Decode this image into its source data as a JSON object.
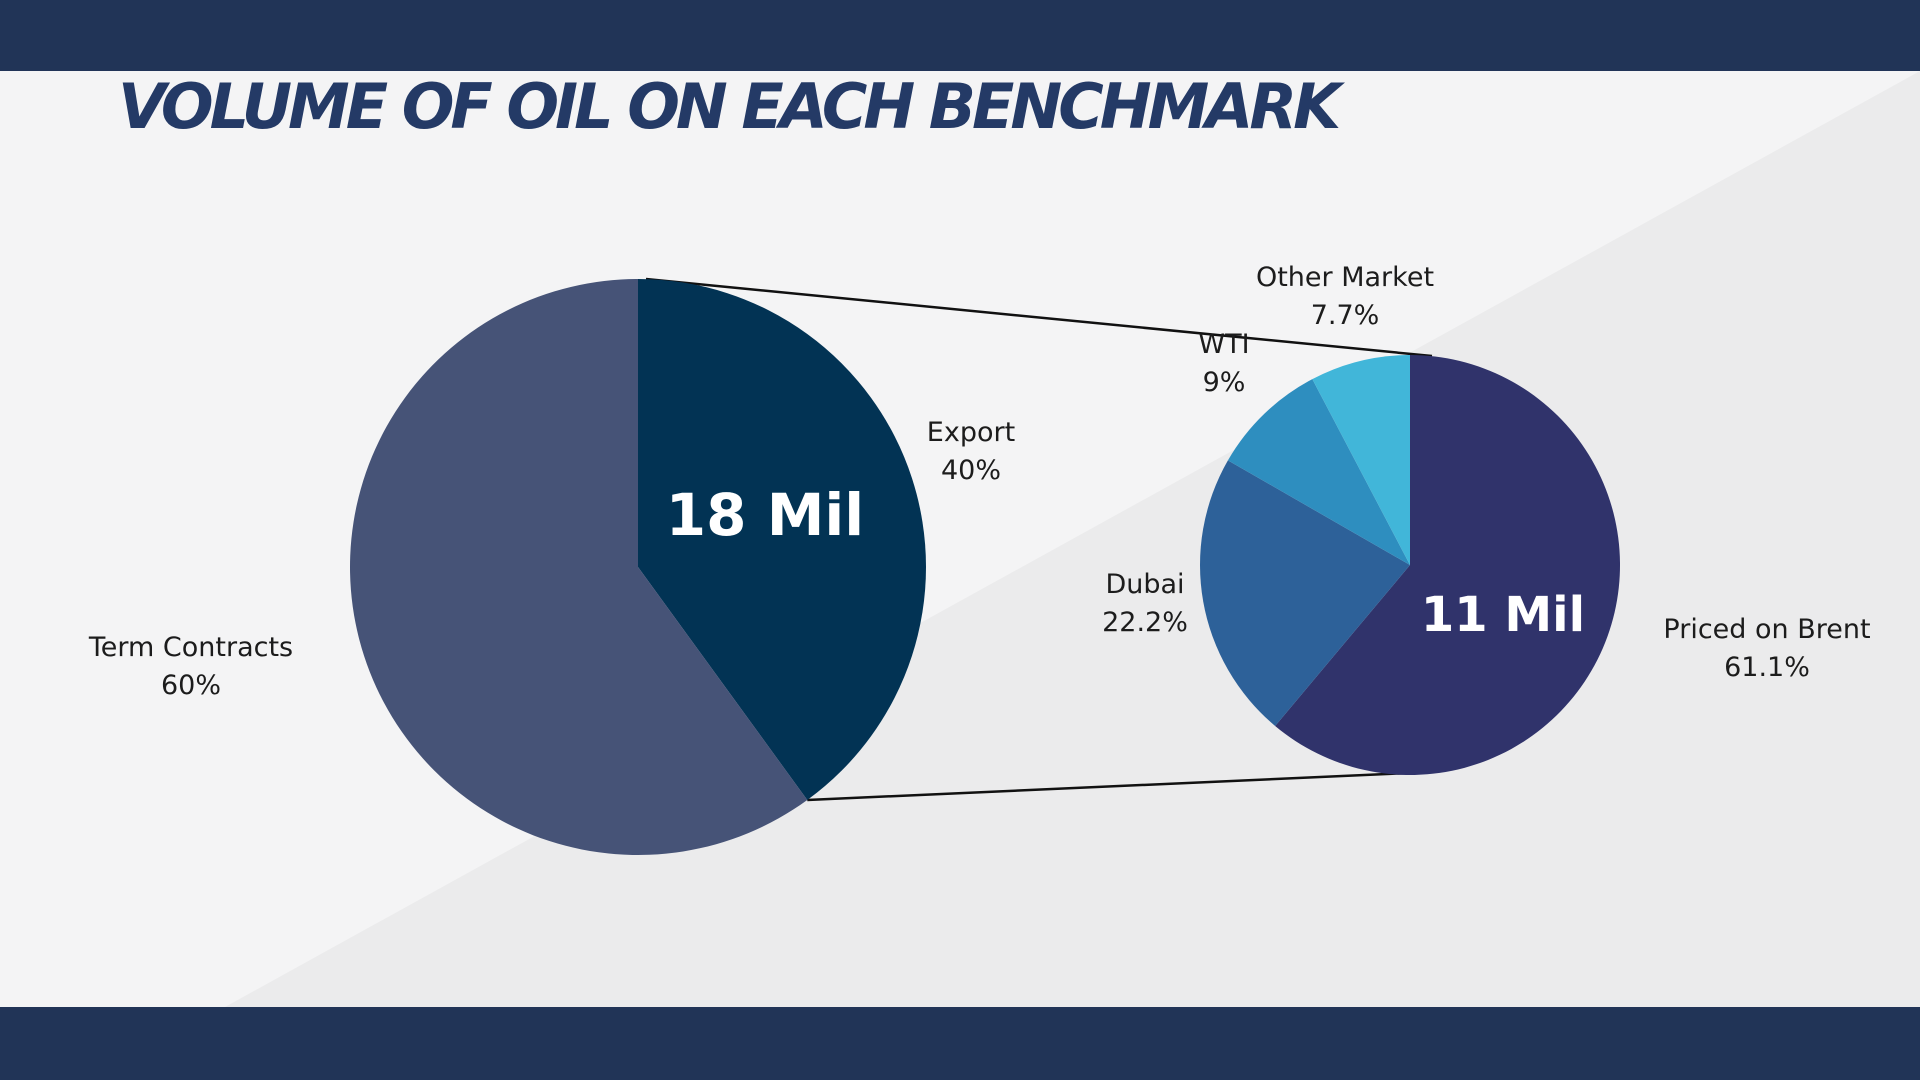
{
  "title": "VOLUME OF OIL ON EACH BENCHMARK",
  "colors": {
    "band": "#213457",
    "title": "#243a66",
    "background": "#f4f4f5",
    "background_diagonal": "#ebebec",
    "term_contracts": "#465377",
    "export": "#023354",
    "priced_on_brent": "#30336b",
    "dubai": "#2d6199",
    "wti": "#2e8ebf",
    "other_market": "#41b6d9",
    "connector": "#111111",
    "center_label": "#ffffff"
  },
  "chart_data": [
    {
      "type": "pie",
      "center_label": "18 Mil",
      "slices": [
        {
          "name": "Export",
          "value": 40,
          "label": "40%",
          "color": "#023354"
        },
        {
          "name": "Term Contracts",
          "value": 60,
          "label": "60%",
          "color": "#465377"
        }
      ]
    },
    {
      "type": "pie",
      "center_label": "11 Mil",
      "slices": [
        {
          "name": "Priced on Brent",
          "value": 61.1,
          "label": "61.1%",
          "color": "#30336b"
        },
        {
          "name": "Dubai",
          "value": 22.2,
          "label": "22.2%",
          "color": "#2d6199"
        },
        {
          "name": "WTI",
          "value": 9,
          "label": "9%",
          "color": "#2e8ebf"
        },
        {
          "name": "Other Market",
          "value": 7.7,
          "label": "7.7%",
          "color": "#41b6d9"
        }
      ]
    }
  ]
}
